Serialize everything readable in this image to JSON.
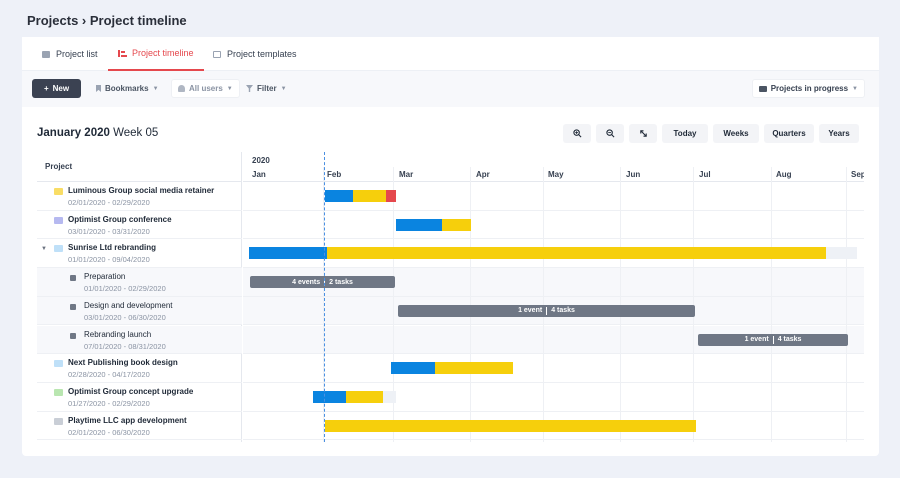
{
  "breadcrumb": "Projects › Project timeline",
  "tabs": [
    {
      "label": "Project list",
      "icon": "list-icon"
    },
    {
      "label": "Project timeline",
      "icon": "timeline-icon"
    },
    {
      "label": "Project templates",
      "icon": "template-icon"
    }
  ],
  "toolbar": {
    "new_label": "New",
    "bookmarks_label": "Bookmarks",
    "all_users_label": "All users",
    "filter_label": "Filter",
    "projects_filter_label": "Projects in progress"
  },
  "gantt": {
    "period": "January 2020",
    "week": "Week 05",
    "zoom_buttons": [
      "Today",
      "Weeks",
      "Quarters",
      "Years"
    ],
    "column_header": "Project",
    "year": "2020",
    "months": [
      "Jan",
      "Feb",
      "Mar",
      "Apr",
      "May",
      "Jun",
      "Jul",
      "Aug",
      "Sep"
    ],
    "rows": [
      {
        "name": "Luminous Group social media retainer",
        "dates": "02/01/2020 - 02/29/2020",
        "color": "#f9dd65"
      },
      {
        "name": "Optimist Group conference",
        "dates": "03/01/2020 - 03/31/2020",
        "color": "#b6b9f0"
      },
      {
        "name": "Sunrise Ltd rebranding",
        "dates": "01/01/2020 - 09/04/2020",
        "color": "#bfe0f8"
      },
      {
        "name": "Preparation",
        "dates": "01/01/2020 - 02/29/2020",
        "color": "#6f7785"
      },
      {
        "name": "Design and development",
        "dates": "03/01/2020 - 06/30/2020",
        "color": "#6f7785"
      },
      {
        "name": "Rebranding launch",
        "dates": "07/01/2020 - 08/31/2020",
        "color": "#6f7785"
      },
      {
        "name": "Next Publishing book design",
        "dates": "02/28/2020 - 04/17/2020",
        "color": "#bfe0f8"
      },
      {
        "name": "Optimist Group concept upgrade",
        "dates": "01/27/2020 - 02/29/2020",
        "color": "#b9e6b0"
      },
      {
        "name": "Playtime LLC app development",
        "dates": "02/01/2020 - 06/30/2020",
        "color": "#c9ced6"
      }
    ],
    "phase_labels": {
      "preparation": {
        "events": "4 events",
        "tasks": "2 tasks"
      },
      "design": {
        "events": "1 event",
        "tasks": "4 tasks"
      },
      "launch": {
        "events": "1 event",
        "tasks": "4 tasks"
      }
    }
  }
}
